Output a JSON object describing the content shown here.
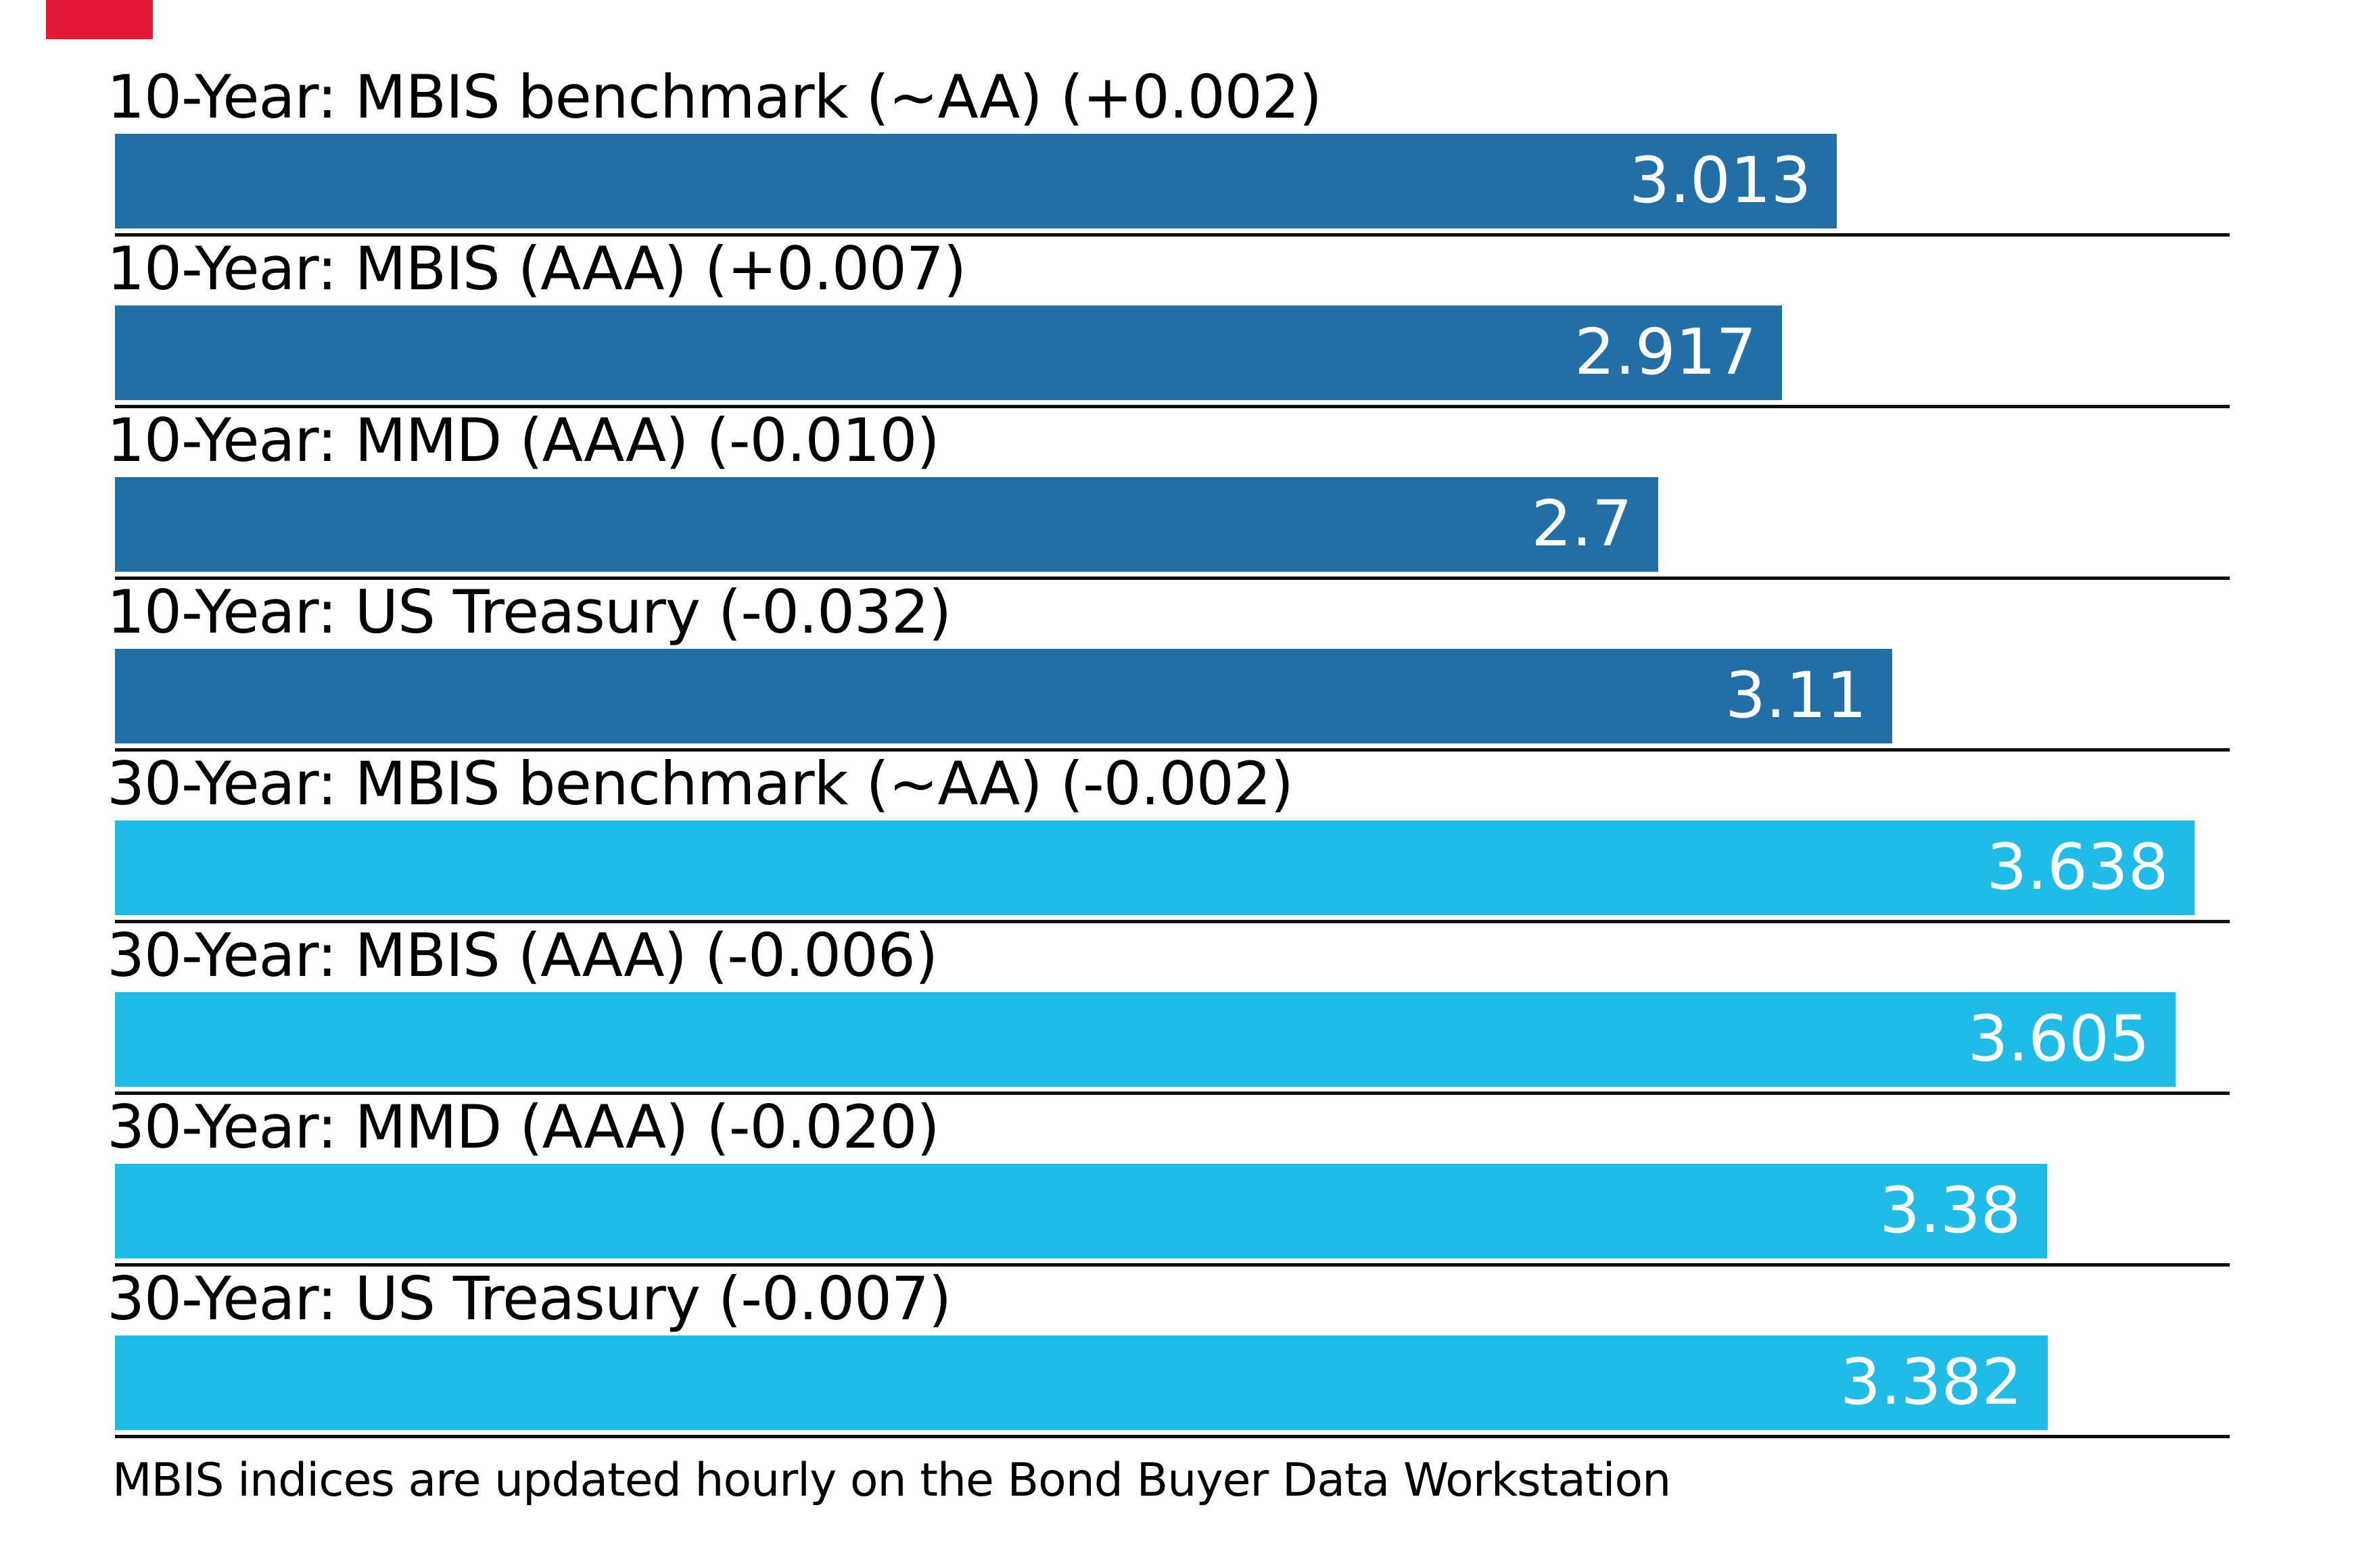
{
  "page": {
    "background": "#ffffff",
    "text_color": "#000000",
    "axis_line_color": "#0d0d0d"
  },
  "brand": {
    "red_block_color": "#e21836"
  },
  "footnote": "MBIS indices are updated hourly on the Bond Buyer Data Workstation",
  "chart_data": {
    "type": "bar",
    "orientation": "horizontal",
    "title": "",
    "xlabel": "",
    "ylabel": "",
    "grid": false,
    "legend": "none",
    "xlim": [
      0,
      3.7
    ],
    "categories": [
      "10-Year: MBIS benchmark (~AA) (+0.002)",
      "10-Year: MBIS (AAA) (+0.007)",
      "10-Year: MMD (AAA) (-0.010)",
      "10-Year: US Treasury (-0.032)",
      "30-Year: MBIS benchmark (~AA) (-0.002)",
      "30-Year: MBIS (AAA) (-0.006)",
      "30-Year: MMD (AAA) (-0.020)",
      "30-Year: US Treasury (-0.007)"
    ],
    "values": [
      3.013,
      2.917,
      2.7,
      3.11,
      3.638,
      3.605,
      3.38,
      3.382
    ],
    "value_labels": [
      "3.013",
      "2.917",
      "2.7",
      "3.11",
      "3.638",
      "3.605",
      "3.38",
      "3.382"
    ],
    "groups": [
      "10-Year",
      "10-Year",
      "10-Year",
      "10-Year",
      "30-Year",
      "30-Year",
      "30-Year",
      "30-Year"
    ],
    "bar_colors": {
      "10-Year": "#216fa6",
      "30-Year": "#20bce8"
    },
    "value_label_color": "#ffffff",
    "changes": [
      "+0.002",
      "+0.007",
      "-0.010",
      "-0.032",
      "-0.002",
      "-0.006",
      "-0.020",
      "-0.007"
    ]
  }
}
